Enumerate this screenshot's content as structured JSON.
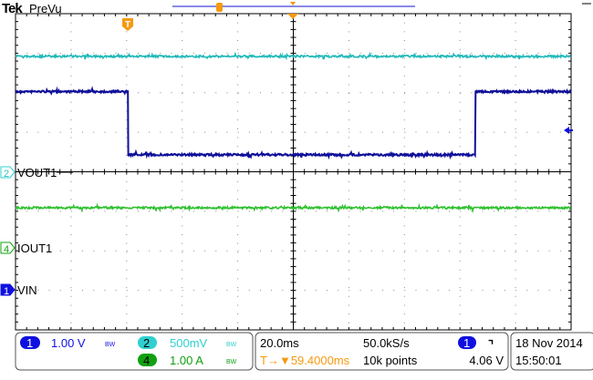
{
  "header": {
    "brand": "Tek",
    "mode": "PreVu"
  },
  "channels": [
    {
      "id": "1",
      "label": "VIN",
      "scale": "1.00 V",
      "bw": "BW",
      "color": "#1010c8",
      "trace_color": "#10109a"
    },
    {
      "id": "2",
      "label": "VOUT1",
      "scale": "500mV",
      "bw": "BW",
      "color": "#30d0d0",
      "trace_color": "#20b8b8"
    },
    {
      "id": "4",
      "label": "IOUT1",
      "scale": "1.00 A",
      "bw": "BW",
      "color": "#10a010",
      "trace_color": "#30c030"
    }
  ],
  "horizontal": {
    "time_per_div": "20.0ms",
    "sample_rate": "50.0kS/s",
    "delay": "59.4000ms",
    "record_length": "10k points",
    "delay_prefix": "T→▼"
  },
  "trigger": {
    "source": "1",
    "slope": "falling",
    "slope_glyph": "⌝",
    "level": "4.06 V",
    "marker": "T",
    "color": "#f59a10"
  },
  "datetime": {
    "date": "18 Nov 2014",
    "time": "15:50:01"
  },
  "chart_data": {
    "type": "line",
    "title": "",
    "x_unit": "ms from trigger",
    "xlim": [
      -40.6,
      159.4
    ],
    "divisions": {
      "horizontal": 10,
      "vertical": 8
    },
    "grid": true,
    "series": [
      {
        "name": "VIN",
        "channel": "1",
        "unit": "V",
        "volts_per_div": 1.0,
        "ground_div_from_center": -2.97,
        "points": [
          [
            -40.6,
            5.0
          ],
          [
            0,
            5.0
          ],
          [
            0,
            3.4
          ],
          [
            125,
            3.4
          ],
          [
            125,
            5.0
          ],
          [
            159.4,
            5.0
          ]
        ]
      },
      {
        "name": "VOUT1",
        "channel": "2",
        "unit": "V",
        "volts_per_div": 0.5,
        "ground_div_from_center": 0,
        "points": [
          [
            -40.6,
            1.46
          ],
          [
            159.4,
            1.46
          ]
        ]
      },
      {
        "name": "IOUT1",
        "channel": "4",
        "unit": "A",
        "volts_per_div": 1.0,
        "ground_div_from_center": -1.91,
        "points": [
          [
            -40.6,
            1.0
          ],
          [
            159.4,
            1.0
          ]
        ]
      }
    ]
  }
}
